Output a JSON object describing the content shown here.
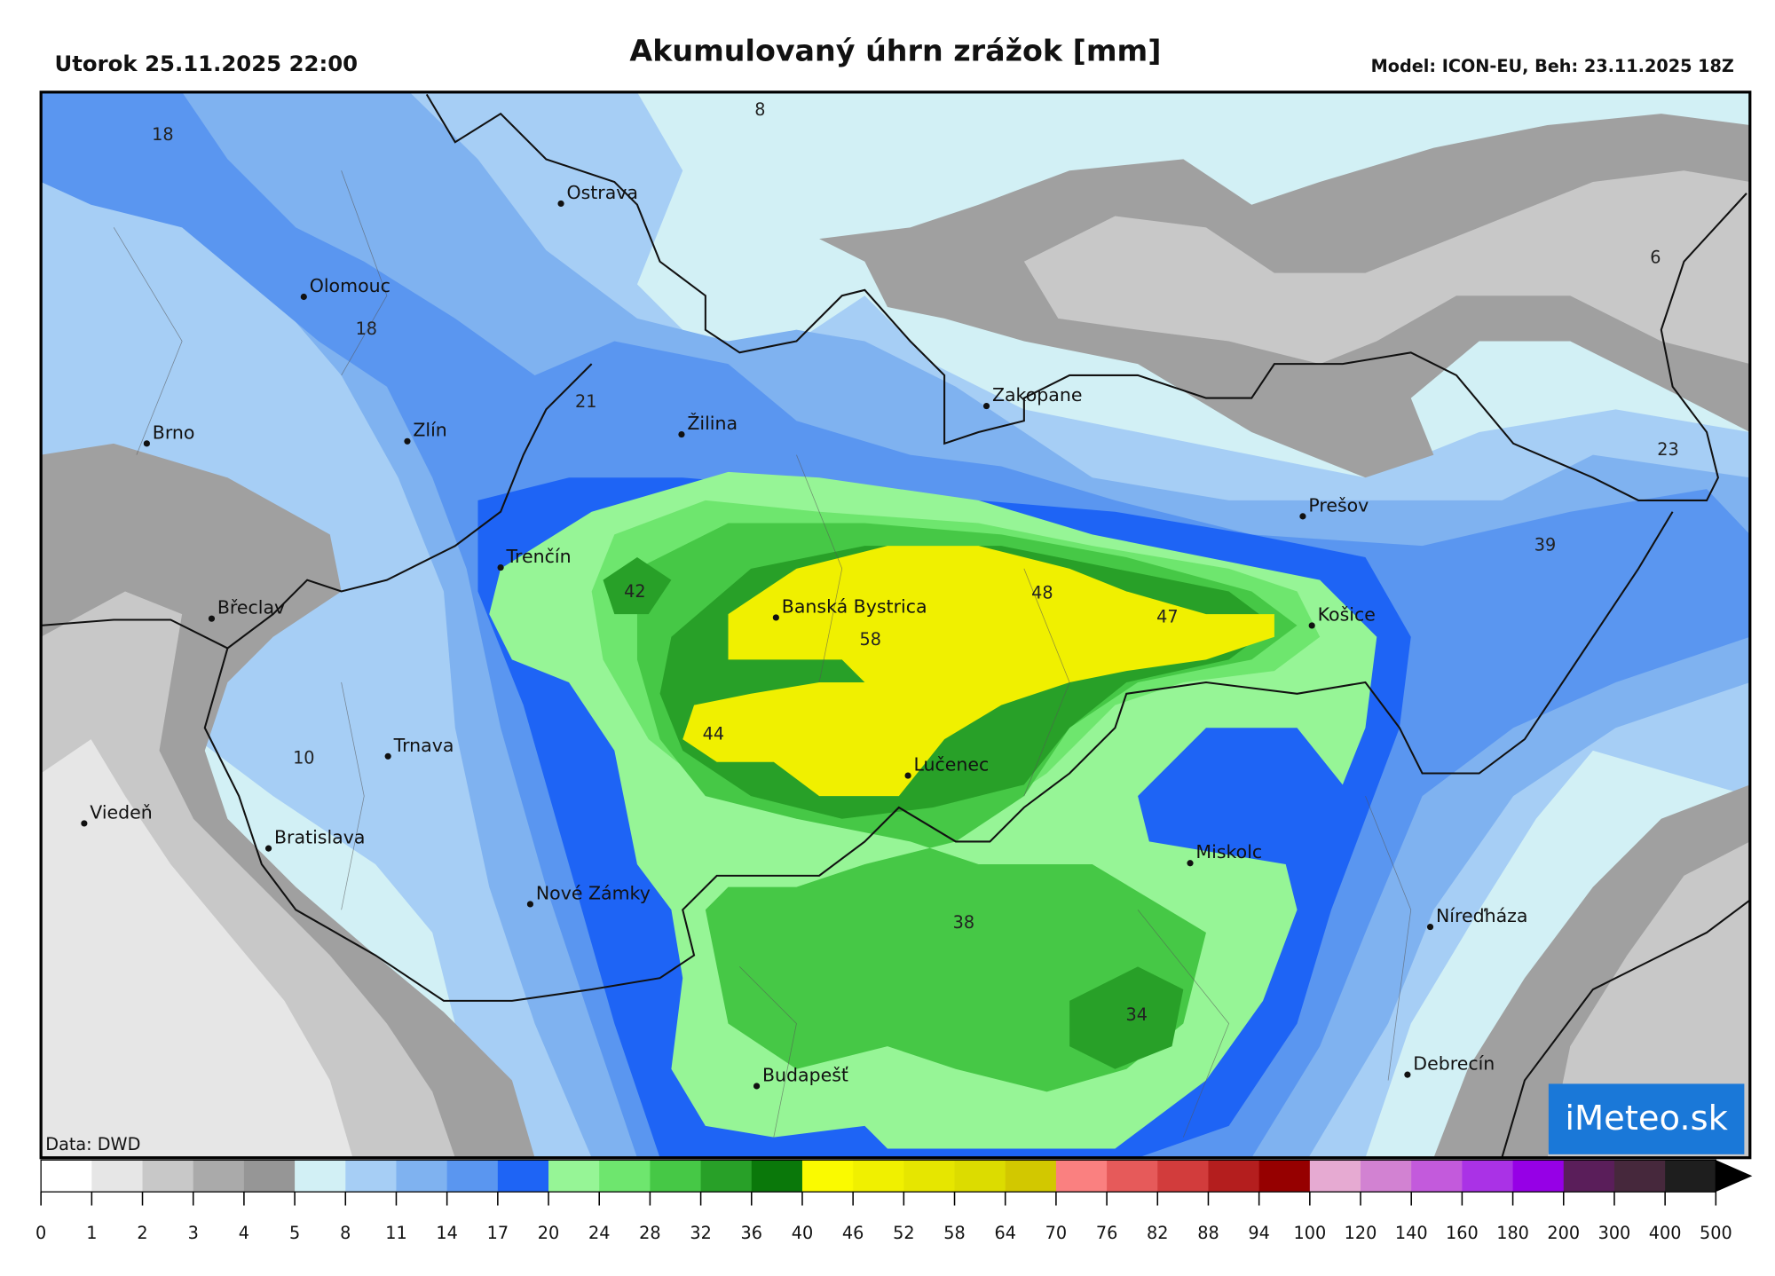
{
  "header": {
    "left": "Utorok 25.11.2025 22:00",
    "title": "Akumulovaný úhrn zrážok [mm]",
    "right": "Model: ICON-EU, Beh: 23.11.2025 18Z"
  },
  "cities": [
    "Ostrava",
    "Olomouc",
    "Brno",
    "Zlín",
    "Žilina",
    "Zakopane",
    "Trenčín",
    "Břeclav",
    "Banská Bystrica",
    "Prešov",
    "Košice",
    "Trnava",
    "Lučenec",
    "Viedeň",
    "Bratislava",
    "Miskolc",
    "Nové Zámky",
    "Níreďháza",
    "Budapešť",
    "Debrecín"
  ],
  "map_values": [
    18,
    8,
    18,
    21,
    6,
    23,
    39,
    42,
    48,
    47,
    58,
    44,
    10,
    38,
    34
  ],
  "legend": {
    "ticks": [
      0,
      1,
      2,
      3,
      4,
      5,
      8,
      11,
      14,
      17,
      20,
      24,
      28,
      32,
      36,
      40,
      46,
      52,
      58,
      64,
      70,
      76,
      82,
      88,
      94,
      100,
      120,
      140,
      160,
      180,
      200,
      300,
      400,
      500
    ],
    "colors": [
      "#ffffff",
      "#e6e6e6",
      "#c8c8c8",
      "#aaaaaa",
      "#969696",
      "#d2f0f5",
      "#a6cef5",
      "#7fb2f0",
      "#5a96f0",
      "#1e64f5",
      "#96f596",
      "#6ee66e",
      "#46c846",
      "#28a028",
      "#0a780a",
      "#fafa00",
      "#f0f000",
      "#e6e600",
      "#dcdc00",
      "#d2c800",
      "#fa8080",
      "#e65a5a",
      "#d23c3c",
      "#b41e1e",
      "#960000",
      "#e6aad2",
      "#d282d2",
      "#c35adc",
      "#aa32e6",
      "#9600e6",
      "#5a1e5a",
      "#46283c",
      "#1e1e1e"
    ]
  },
  "source": "Data: DWD",
  "logo": "iMeteo.sk"
}
